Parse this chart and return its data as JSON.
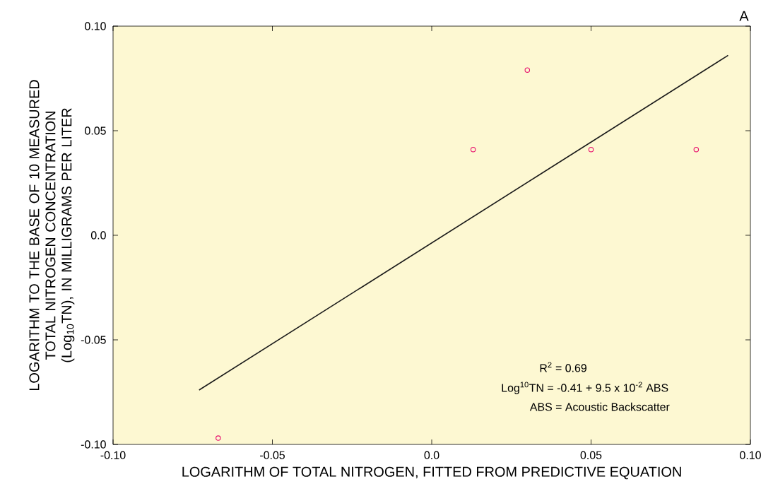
{
  "chart_data": {
    "type": "scatter",
    "xlabel": "LOGARITHM OF TOTAL NITROGEN, FITTED FROM PREDICTIVE EQUATION",
    "ylabel": "LOGARITHM TO THE BASE OF 10 MEASURED TOTAL NITROGEN CONCENTRATION (Log$_{10}$TN), IN MILLIGRAMS PER LITER",
    "xlim": [
      -0.1,
      0.1
    ],
    "ylim": [
      -0.1,
      0.1
    ],
    "xticks": [
      {
        "value": -0.1,
        "label": "-0.10"
      },
      {
        "value": -0.05,
        "label": "-0.05"
      },
      {
        "value": 0,
        "label": "0.0"
      },
      {
        "value": 0.05,
        "label": "0.05"
      },
      {
        "value": 0.1,
        "label": "0.10"
      }
    ],
    "yticks": [
      {
        "value": -0.1,
        "label": "-0.10"
      },
      {
        "value": -0.05,
        "label": "-0.05"
      },
      {
        "value": 0,
        "label": "0.0"
      },
      {
        "value": 0.05,
        "label": "0.05"
      },
      {
        "value": 0.1,
        "label": "0.10"
      }
    ],
    "series": [
      {
        "type": "scatter",
        "color": "#e8106e",
        "marker": "circle",
        "x": [
          -0.067,
          0.013,
          0.03,
          0.05,
          0.083
        ],
        "values": [
          -0.097,
          0.041,
          0.079,
          0.041,
          0.041
        ]
      },
      {
        "type": "line",
        "color": "#1a1a1a",
        "marker": "none",
        "line_style": "solid",
        "x": [
          -0.073,
          0.093
        ],
        "values": [
          -0.074,
          0.086
        ]
      }
    ],
    "annotations": [
      "A",
      "R$^{2}$ = 0.69",
      "Log$^{10}$TN = -0.41 + 9.5 x 10$^{-2}$ ABS",
      "ABS = Acoustic Backscatter"
    ]
  }
}
